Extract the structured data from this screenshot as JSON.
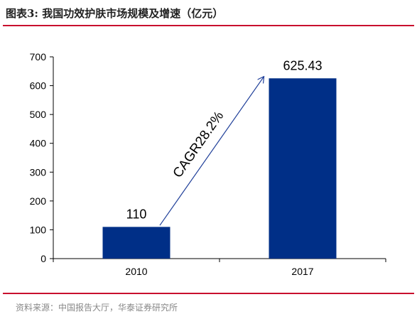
{
  "figure": {
    "title": "图表3:   我国功效护肤市场规模及增速（亿元）",
    "source": "资料来源：中国报告大厅，华泰证券研究所"
  },
  "colors": {
    "bar": "#002f87",
    "rule": "#c8102e",
    "arrow": "#1f3f99",
    "axis": "#000000"
  },
  "chart_data": {
    "type": "bar",
    "categories": [
      "2010",
      "2017"
    ],
    "values": [
      110,
      625.43
    ],
    "value_labels": [
      "110",
      "625.43"
    ],
    "ylim": [
      0,
      700
    ],
    "yticks": [
      0,
      100,
      200,
      300,
      400,
      500,
      600,
      700
    ],
    "grid": false,
    "annotation": {
      "text": "CAGR28.2%",
      "from": [
        "2010",
        140
      ],
      "to": [
        "2017",
        625
      ]
    }
  }
}
